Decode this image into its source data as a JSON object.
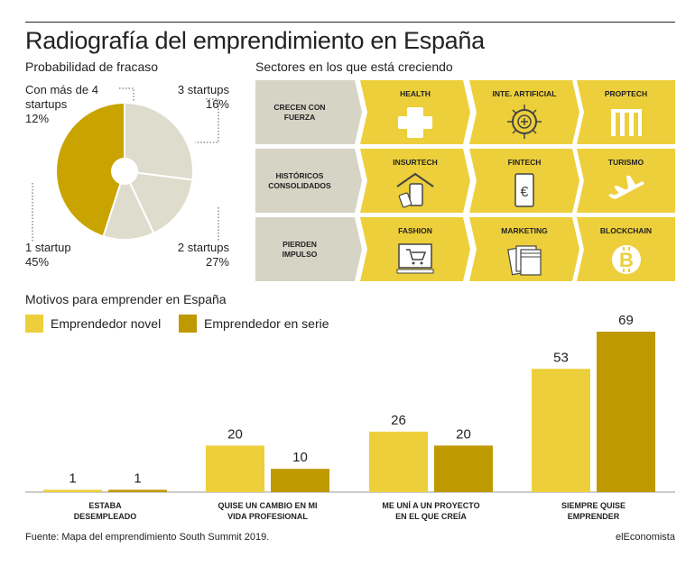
{
  "header": {
    "title": "Radiografía del emprendimiento en España"
  },
  "pie_section": {
    "subtitle": "Probabilidad de fracaso",
    "labels": {
      "mas4_line1": "Con más de 4",
      "mas4_line2": "startups",
      "mas4_value": "12%",
      "s3_line1": "3 startups",
      "s3_value": "16%",
      "s2_line1": "2 startups",
      "s2_value": "27%",
      "s1_line1": "1 startup",
      "s1_value": "45%"
    }
  },
  "sectors": {
    "subtitle": "Sectores en los que está creciendo",
    "rows": [
      {
        "label_l1": "CRECEN CON",
        "label_l2": "FUERZA",
        "cells": [
          {
            "label": "HEALTH",
            "icon": "health-cross-icon"
          },
          {
            "label": "INTE. ARTIFICIAL",
            "icon": "ai-chip-icon"
          },
          {
            "label": "PROPTECH",
            "icon": "building-icon"
          }
        ]
      },
      {
        "label_l1": "HISTÓRICOS",
        "label_l2": "CONSOLIDADOS",
        "cells": [
          {
            "label": "INSURTECH",
            "icon": "insurtech-icon"
          },
          {
            "label": "FINTECH",
            "icon": "euro-phone-icon"
          },
          {
            "label": "TURISMO",
            "icon": "plane-icon"
          }
        ]
      },
      {
        "label_l1": "PIERDEN",
        "label_l2": "IMPULSO",
        "cells": [
          {
            "label": "FASHION",
            "icon": "shopping-cart-icon"
          },
          {
            "label": "MARKETING",
            "icon": "documents-icon"
          },
          {
            "label": "BLOCKCHAIN",
            "icon": "bitcoin-icon"
          }
        ]
      }
    ]
  },
  "colors": {
    "novel": "#edcf3b",
    "serie": "#bf9900",
    "pie_main": "#c9a400",
    "pie_grey": "#dedccd",
    "row_label_bg": "#d6d4c5"
  },
  "chart_data": [
    {
      "type": "pie",
      "title": "Probabilidad de fracaso",
      "slices": [
        {
          "label": "1 startup",
          "value": 45
        },
        {
          "label": "2 startups",
          "value": 27
        },
        {
          "label": "3 startups",
          "value": 16
        },
        {
          "label": "Con más de 4 startups",
          "value": 12
        }
      ]
    },
    {
      "type": "bar",
      "title": "Motivos para emprender en España",
      "categories": [
        [
          "ESTABA",
          "DESEMPLEADO"
        ],
        [
          "QUISE UN CAMBIO EN MI",
          "VIDA PROFESIONAL"
        ],
        [
          "ME UNÍ A UN PROYECTO",
          "EN EL QUE CREÍA"
        ],
        [
          "SIEMPRE QUISE",
          "EMPRENDER"
        ]
      ],
      "series": [
        {
          "name": "Emprendedor novel",
          "values": [
            1,
            20,
            26,
            53
          ]
        },
        {
          "name": "Emprendedor en serie",
          "values": [
            1,
            10,
            20,
            69
          ]
        }
      ],
      "ylim": [
        0,
        69
      ]
    }
  ],
  "footer": {
    "source": "Fuente: Mapa del emprendimiento South Summit 2019.",
    "credit": "elEconomista"
  }
}
